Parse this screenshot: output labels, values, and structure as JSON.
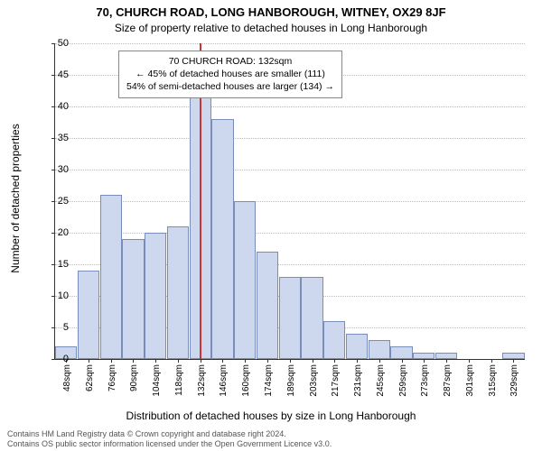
{
  "title_main": "70, CHURCH ROAD, LONG HANBOROUGH, WITNEY, OX29 8JF",
  "title_sub": "Size of property relative to detached houses in Long Hanborough",
  "ylabel": "Number of detached properties",
  "xlabel": "Distribution of detached houses by size in Long Hanborough",
  "footer_line1": "Contains HM Land Registry data © Crown copyright and database right 2024.",
  "footer_line2": "Contains OS public sector information licensed under the Open Government Licence v3.0.",
  "chart": {
    "type": "histogram",
    "ylim": [
      0,
      50
    ],
    "ytick_step": 5,
    "bar_fill": "#cdd8ef",
    "bar_border": "#7a8db8",
    "grid_color": "#bbbbbb",
    "background_color": "#ffffff",
    "highlight_color": "#cc3333",
    "highlight_x": 132,
    "categories": [
      "48sqm",
      "62sqm",
      "76sqm",
      "90sqm",
      "104sqm",
      "118sqm",
      "132sqm",
      "146sqm",
      "160sqm",
      "174sqm",
      "189sqm",
      "203sqm",
      "217sqm",
      "231sqm",
      "245sqm",
      "259sqm",
      "273sqm",
      "287sqm",
      "301sqm",
      "315sqm",
      "329sqm"
    ],
    "values": [
      2,
      14,
      26,
      19,
      20,
      21,
      45,
      38,
      25,
      17,
      13,
      13,
      6,
      4,
      3,
      2,
      1,
      1,
      0,
      0,
      1
    ],
    "annotation": {
      "line1": "70 CHURCH ROAD: 132sqm",
      "line2": "← 45% of detached houses are smaller (111)",
      "line3": "54% of semi-detached houses are larger (134) →"
    },
    "title_fontsize": 13,
    "subtitle_fontsize": 12,
    "label_fontsize": 12,
    "tick_fontsize": 11
  }
}
